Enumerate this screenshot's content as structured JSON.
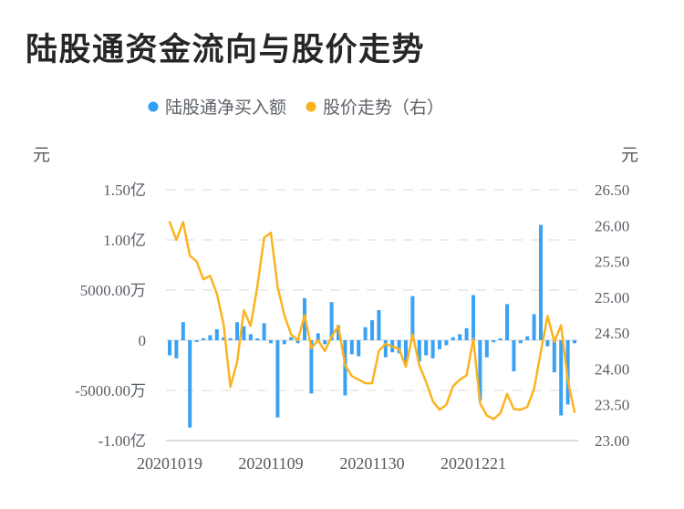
{
  "title": "陆股通资金流向与股价走势",
  "legend": {
    "items": [
      {
        "label": "陆股通净买入额",
        "color": "#2e9df2"
      },
      {
        "label": "股价走势（右）",
        "color": "#fcb11d"
      }
    ]
  },
  "left_axis": {
    "unit": "元",
    "tick_labels": [
      "1.50亿",
      "1.00亿",
      "5000.00万",
      "0",
      "-5000.00万",
      "-1.00亿"
    ],
    "tick_values_wan": [
      15000,
      10000,
      5000,
      0,
      -5000,
      -10000
    ]
  },
  "right_axis": {
    "unit": "元",
    "tick_labels": [
      "26.50",
      "26.00",
      "25.50",
      "25.00",
      "24.50",
      "24.00",
      "23.50",
      "23.00"
    ],
    "max": 26.5,
    "min": 23.0
  },
  "x_axis": {
    "tick_labels": [
      "20201019",
      "20201109",
      "20201130",
      "20201221"
    ],
    "tick_indices": [
      0,
      15,
      30,
      45
    ],
    "num_points": 61
  },
  "chart_data": {
    "type": "combo",
    "title": "陆股通资金流向与股价走势",
    "grid": "horizontal dashed",
    "legend_position": "top-center",
    "num_points": 61,
    "x_tick_labels": [
      "20201019",
      "20201109",
      "20201130",
      "20201221"
    ],
    "x_tick_indices": [
      0,
      15,
      30,
      45
    ],
    "left_axis_range_wan": [
      -10000,
      15000
    ],
    "right_axis_range_yuan": [
      23.0,
      26.5
    ],
    "series": [
      {
        "name": "陆股通净买入额",
        "type": "bar",
        "axis": "left",
        "unit": "万元",
        "color": "#3aa2f4",
        "values": [
          -1500,
          -1800,
          1800,
          -8700,
          -100,
          200,
          500,
          1100,
          300,
          200,
          1800,
          1400,
          600,
          100,
          1700,
          -300,
          -7700,
          -400,
          300,
          -300,
          4200,
          -5300,
          700,
          -400,
          3800,
          1500,
          -5500,
          -1400,
          -1600,
          1300,
          2000,
          3000,
          -1700,
          -1200,
          -1300,
          -2300,
          4400,
          -2100,
          -1500,
          -1800,
          -900,
          -500,
          300,
          600,
          1200,
          4500,
          -6000,
          -1700,
          -200,
          100,
          3600,
          -3100,
          -300,
          400,
          2600,
          11500,
          -600,
          -3200,
          -7500,
          -6400,
          -300
        ]
      },
      {
        "name": "股价走势（右）",
        "type": "line",
        "axis": "right",
        "unit": "元",
        "color": "#fcb321",
        "values": [
          26.05,
          25.8,
          26.05,
          25.58,
          25.5,
          25.25,
          25.3,
          25.05,
          24.62,
          23.75,
          24.1,
          24.82,
          24.6,
          25.15,
          25.83,
          25.9,
          25.15,
          24.75,
          24.48,
          24.4,
          24.75,
          24.29,
          24.4,
          24.25,
          24.45,
          24.6,
          24.05,
          23.9,
          23.85,
          23.8,
          23.8,
          24.25,
          24.35,
          24.31,
          24.28,
          24.03,
          24.48,
          24.05,
          23.82,
          23.55,
          23.43,
          23.5,
          23.76,
          23.85,
          23.91,
          24.42,
          23.52,
          23.35,
          23.3,
          23.38,
          23.65,
          23.44,
          23.43,
          23.47,
          23.72,
          24.24,
          24.74,
          24.38,
          24.61,
          23.84,
          23.4
        ]
      }
    ]
  }
}
